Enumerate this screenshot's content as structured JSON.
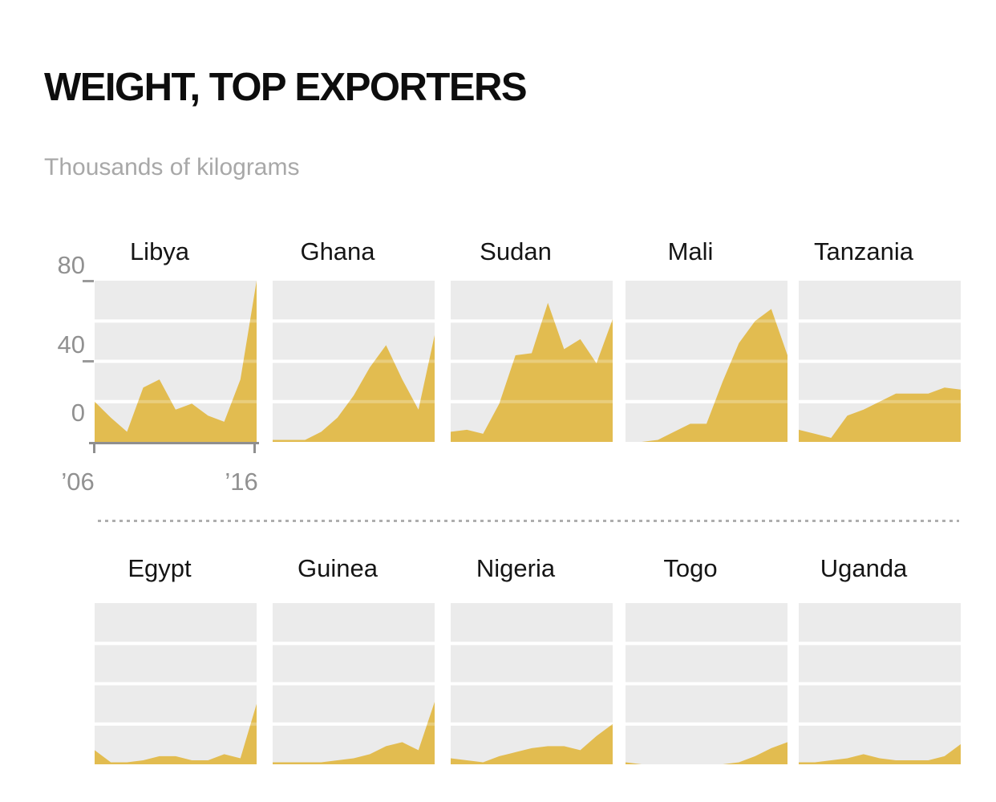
{
  "header": {
    "title": "WEIGHT, TOP EXPORTERS",
    "subtitle": "Thousands of kilograms"
  },
  "y_axis": {
    "tick_labels": [
      "80",
      "40",
      "0"
    ]
  },
  "x_axis": {
    "start_label": "’06",
    "end_label": "’16"
  },
  "colors": {
    "area": "#e2bc50",
    "plot_background": "#ebebeb",
    "gridline": "#ffffff",
    "gridline_over_area": "rgba(255,255,255,0.25)",
    "axis": "#8f8f8f",
    "axis_label": "#919191",
    "chart_title": "#151515",
    "main_title": "#0d0d0d",
    "subtitle": "#a8a8a8"
  },
  "chart_data": {
    "type": "area",
    "title": "WEIGHT, TOP EXPORTERS",
    "subtitle": "Thousands of kilograms",
    "x": [
      2006,
      2007,
      2008,
      2009,
      2010,
      2011,
      2012,
      2013,
      2014,
      2015,
      2016
    ],
    "x_tick_labels": [
      "’06",
      "’16"
    ],
    "ylim": [
      0,
      80
    ],
    "y_tick_labels": [
      80,
      40,
      0
    ],
    "y_gridline_step": 20,
    "grid": "on",
    "legend": "none",
    "layout": "small-multiples, 2 rows x 5 columns, shared 0-80 scale, axis shown on first chart only",
    "rows": [
      [
        "Libya",
        "Ghana",
        "Sudan",
        "Mali",
        "Tanzania"
      ],
      [
        "Egypt",
        "Guinea",
        "Nigeria",
        "Togo",
        "Uganda"
      ]
    ],
    "series": [
      {
        "name": "Libya",
        "values": [
          20,
          12,
          5,
          27,
          31,
          16,
          19,
          13,
          10,
          31,
          80
        ]
      },
      {
        "name": "Ghana",
        "values": [
          1,
          1,
          1,
          5,
          12,
          23,
          37,
          48,
          31,
          16,
          53
        ]
      },
      {
        "name": "Sudan",
        "values": [
          5,
          6,
          4,
          19,
          43,
          44,
          69,
          46,
          51,
          39,
          61
        ]
      },
      {
        "name": "Mali",
        "values": [
          0,
          0,
          1,
          5,
          9,
          9,
          30,
          49,
          60,
          66,
          43
        ]
      },
      {
        "name": "Tanzania",
        "values": [
          6,
          4,
          2,
          13,
          16,
          20,
          24,
          24,
          24,
          27,
          26
        ]
      },
      {
        "name": "Egypt",
        "values": [
          7,
          1,
          1,
          2,
          4,
          4,
          2,
          2,
          5,
          3,
          30
        ]
      },
      {
        "name": "Guinea",
        "values": [
          1,
          1,
          1,
          1,
          2,
          3,
          5,
          9,
          11,
          7,
          31
        ]
      },
      {
        "name": "Nigeria",
        "values": [
          3,
          2,
          1,
          4,
          6,
          8,
          9,
          9,
          7,
          14,
          20
        ]
      },
      {
        "name": "Togo",
        "values": [
          1,
          0,
          0,
          0,
          0,
          0,
          0,
          1,
          4,
          8,
          11
        ]
      },
      {
        "name": "Uganda",
        "values": [
          1,
          1,
          2,
          3,
          5,
          3,
          2,
          2,
          2,
          4,
          10
        ]
      }
    ]
  }
}
